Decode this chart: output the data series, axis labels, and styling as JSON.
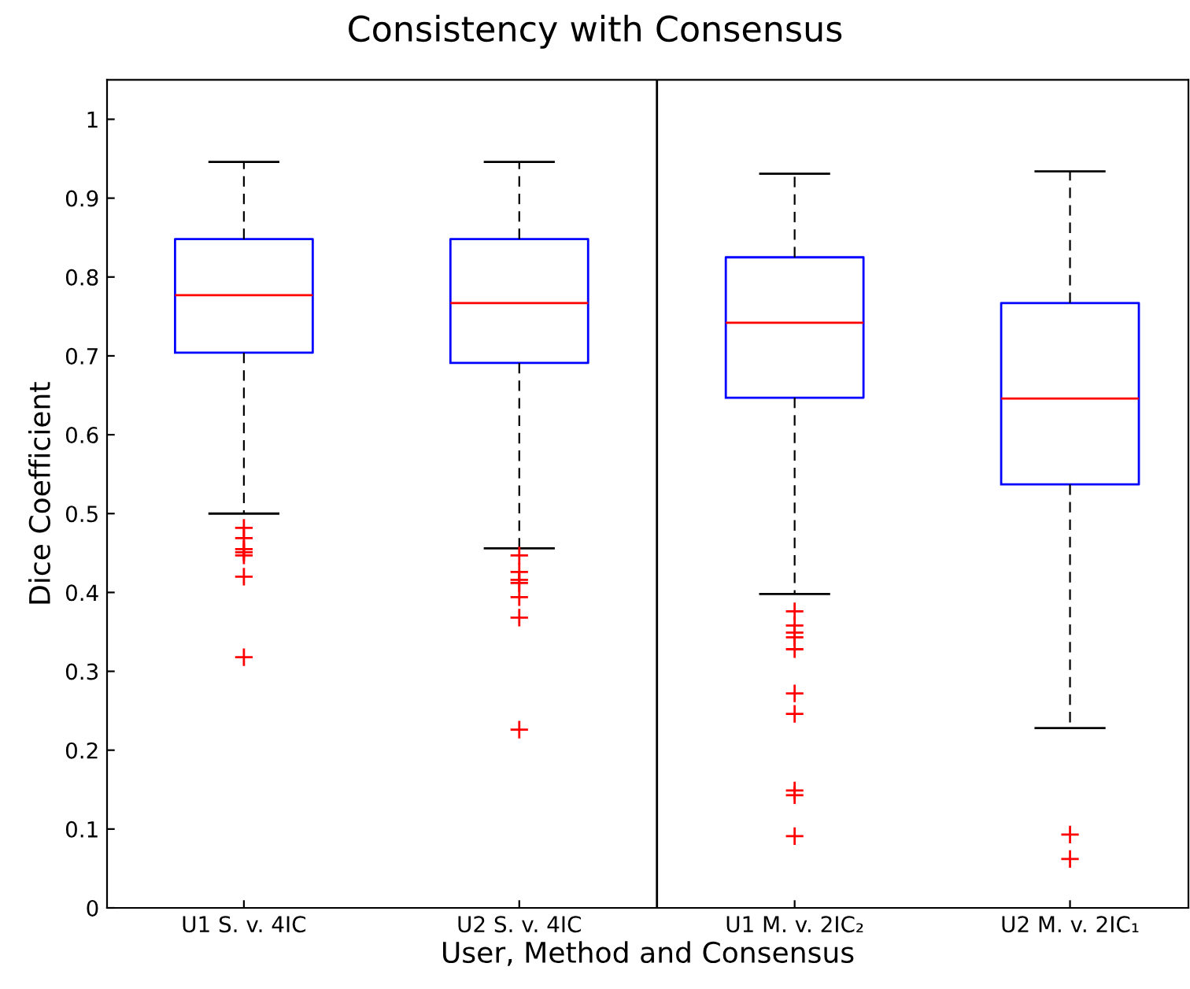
{
  "chart_data": {
    "type": "box",
    "title": "Consistency with Consensus",
    "xlabel": "User, Method and Consensus",
    "ylabel": "Dice Coefficient",
    "categories": [
      "U1 S. v. 4IC",
      "U2 S. v. 4IC",
      "U1 M. v. 2IC₂",
      "U2 M. v. 2IC₁"
    ],
    "boxes": [
      {
        "low": 0.5,
        "q1": 0.704,
        "median": 0.777,
        "q3": 0.848,
        "high": 0.946,
        "outliers": [
          0.482,
          0.469,
          0.455,
          0.451,
          0.447,
          0.42,
          0.318
        ]
      },
      {
        "low": 0.456,
        "q1": 0.691,
        "median": 0.767,
        "q3": 0.848,
        "high": 0.946,
        "outliers": [
          0.447,
          0.426,
          0.416,
          0.412,
          0.394,
          0.368,
          0.226
        ]
      },
      {
        "low": 0.398,
        "q1": 0.647,
        "median": 0.742,
        "q3": 0.825,
        "high": 0.931,
        "outliers": [
          0.376,
          0.358,
          0.349,
          0.343,
          0.328,
          0.272,
          0.246,
          0.149,
          0.143,
          0.091
        ]
      },
      {
        "low": 0.228,
        "q1": 0.537,
        "median": 0.646,
        "q3": 0.767,
        "high": 0.934,
        "outliers": [
          0.093,
          0.062
        ]
      }
    ],
    "color": "#0000ff",
    "ylim": [
      0,
      1.05
    ],
    "yticks": [
      0,
      0.1,
      0.2,
      0.3,
      0.4,
      0.5,
      0.6,
      0.7,
      0.8,
      0.9,
      1
    ],
    "grid": false
  }
}
